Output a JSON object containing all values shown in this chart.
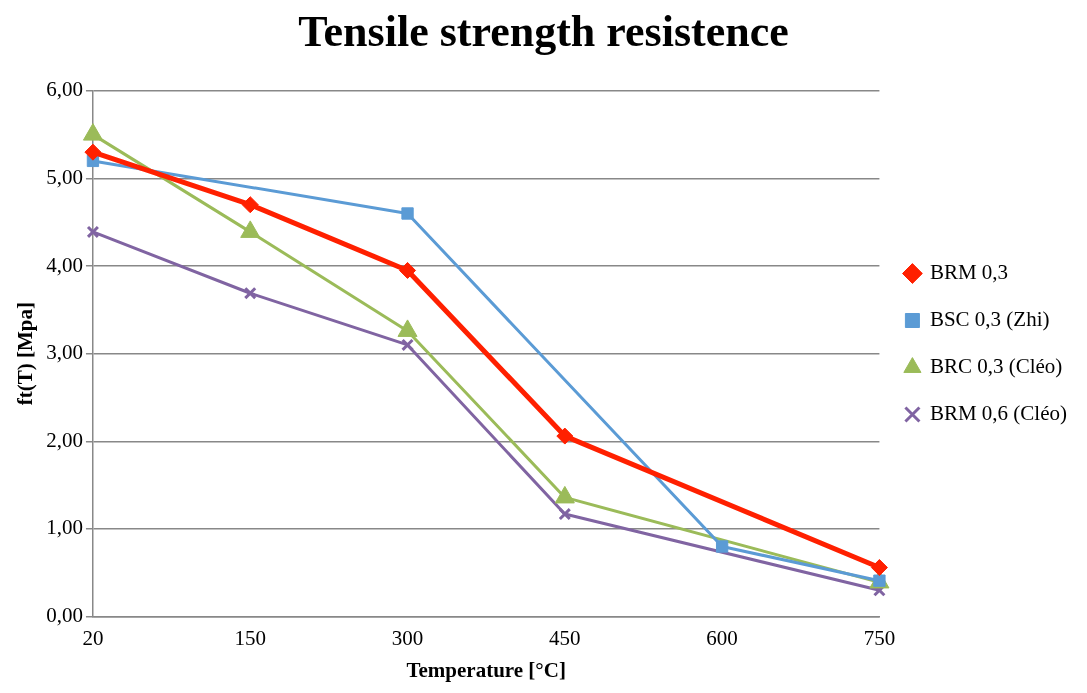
{
  "chart_data": {
    "type": "line",
    "title": "Tensile strength resistence",
    "xlabel": "Temperature [°C]",
    "ylabel": "ft(T) [Mpa]",
    "categories": [
      "20",
      "150",
      "300",
      "450",
      "600",
      "750"
    ],
    "series": [
      {
        "name": "BRM 0,3",
        "color": "#ff2000",
        "marker": "diamond",
        "values": [
          5.3,
          4.7,
          3.95,
          2.06,
          null,
          0.56
        ]
      },
      {
        "name": "BSC 0,3 (Zhi)",
        "color": "#5b9bd5",
        "marker": "square",
        "values": [
          5.2,
          null,
          4.6,
          null,
          0.8,
          0.41
        ]
      },
      {
        "name": "BRC 0,3 (Cléo)",
        "color": "#9bbb59",
        "marker": "triangle",
        "values": [
          5.5,
          4.39,
          3.26,
          1.36,
          null,
          0.39
        ]
      },
      {
        "name": "BRM 0,6 (Cléo)",
        "color": "#8064a2",
        "marker": "cross",
        "values": [
          4.39,
          3.69,
          3.1,
          1.17,
          null,
          0.3
        ]
      }
    ],
    "ylim": [
      0,
      6
    ],
    "yticks": [
      {
        "value": 0,
        "label": "0,00"
      },
      {
        "value": 1,
        "label": "1,00"
      },
      {
        "value": 2,
        "label": "2,00"
      },
      {
        "value": 3,
        "label": "3,00"
      },
      {
        "value": 4,
        "label": "4,00"
      },
      {
        "value": 5,
        "label": "5,00"
      },
      {
        "value": 6,
        "label": "6,00"
      }
    ],
    "grid": "y",
    "legend": "right"
  }
}
